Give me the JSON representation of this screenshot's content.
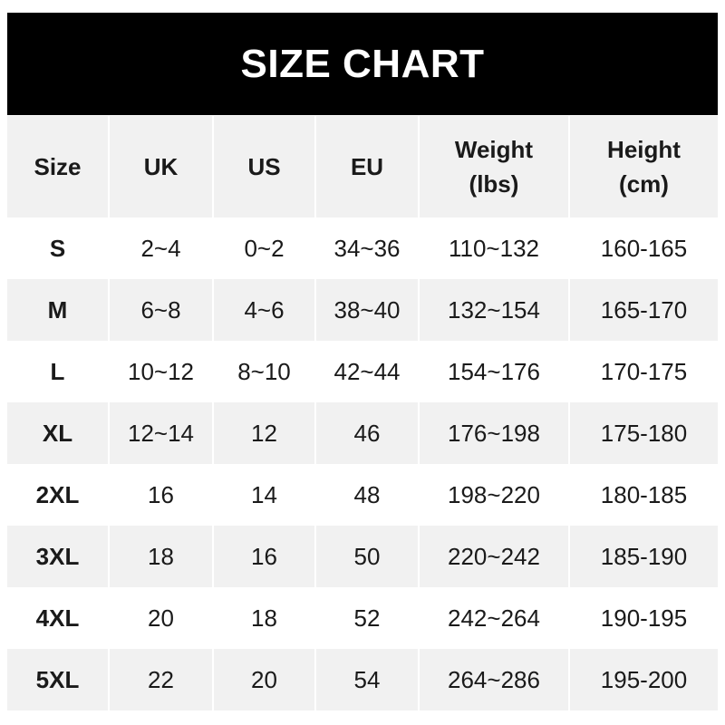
{
  "title": "SIZE CHART",
  "colors": {
    "header_bg": "#000000",
    "row_alt_bg": "#f1f1f1"
  },
  "columns": [
    "Size",
    "UK",
    "US",
    "EU",
    "Weight\n(lbs)",
    "Height\n(cm)"
  ],
  "column_lines": [
    [
      "Size"
    ],
    [
      "UK"
    ],
    [
      "US"
    ],
    [
      "EU"
    ],
    [
      "Weight",
      "(lbs)"
    ],
    [
      "Height",
      "(cm)"
    ]
  ],
  "rows": [
    [
      "S",
      "2~4",
      "0~2",
      "34~36",
      "110~132",
      "160-165"
    ],
    [
      "M",
      "6~8",
      "4~6",
      "38~40",
      "132~154",
      "165-170"
    ],
    [
      "L",
      "10~12",
      "8~10",
      "42~44",
      "154~176",
      "170-175"
    ],
    [
      "XL",
      "12~14",
      "12",
      "46",
      "176~198",
      "175-180"
    ],
    [
      "2XL",
      "16",
      "14",
      "48",
      "198~220",
      "180-185"
    ],
    [
      "3XL",
      "18",
      "16",
      "50",
      "220~242",
      "185-190"
    ],
    [
      "4XL",
      "20",
      "18",
      "52",
      "242~264",
      "190-195"
    ],
    [
      "5XL",
      "22",
      "20",
      "54",
      "264~286",
      "195-200"
    ]
  ]
}
